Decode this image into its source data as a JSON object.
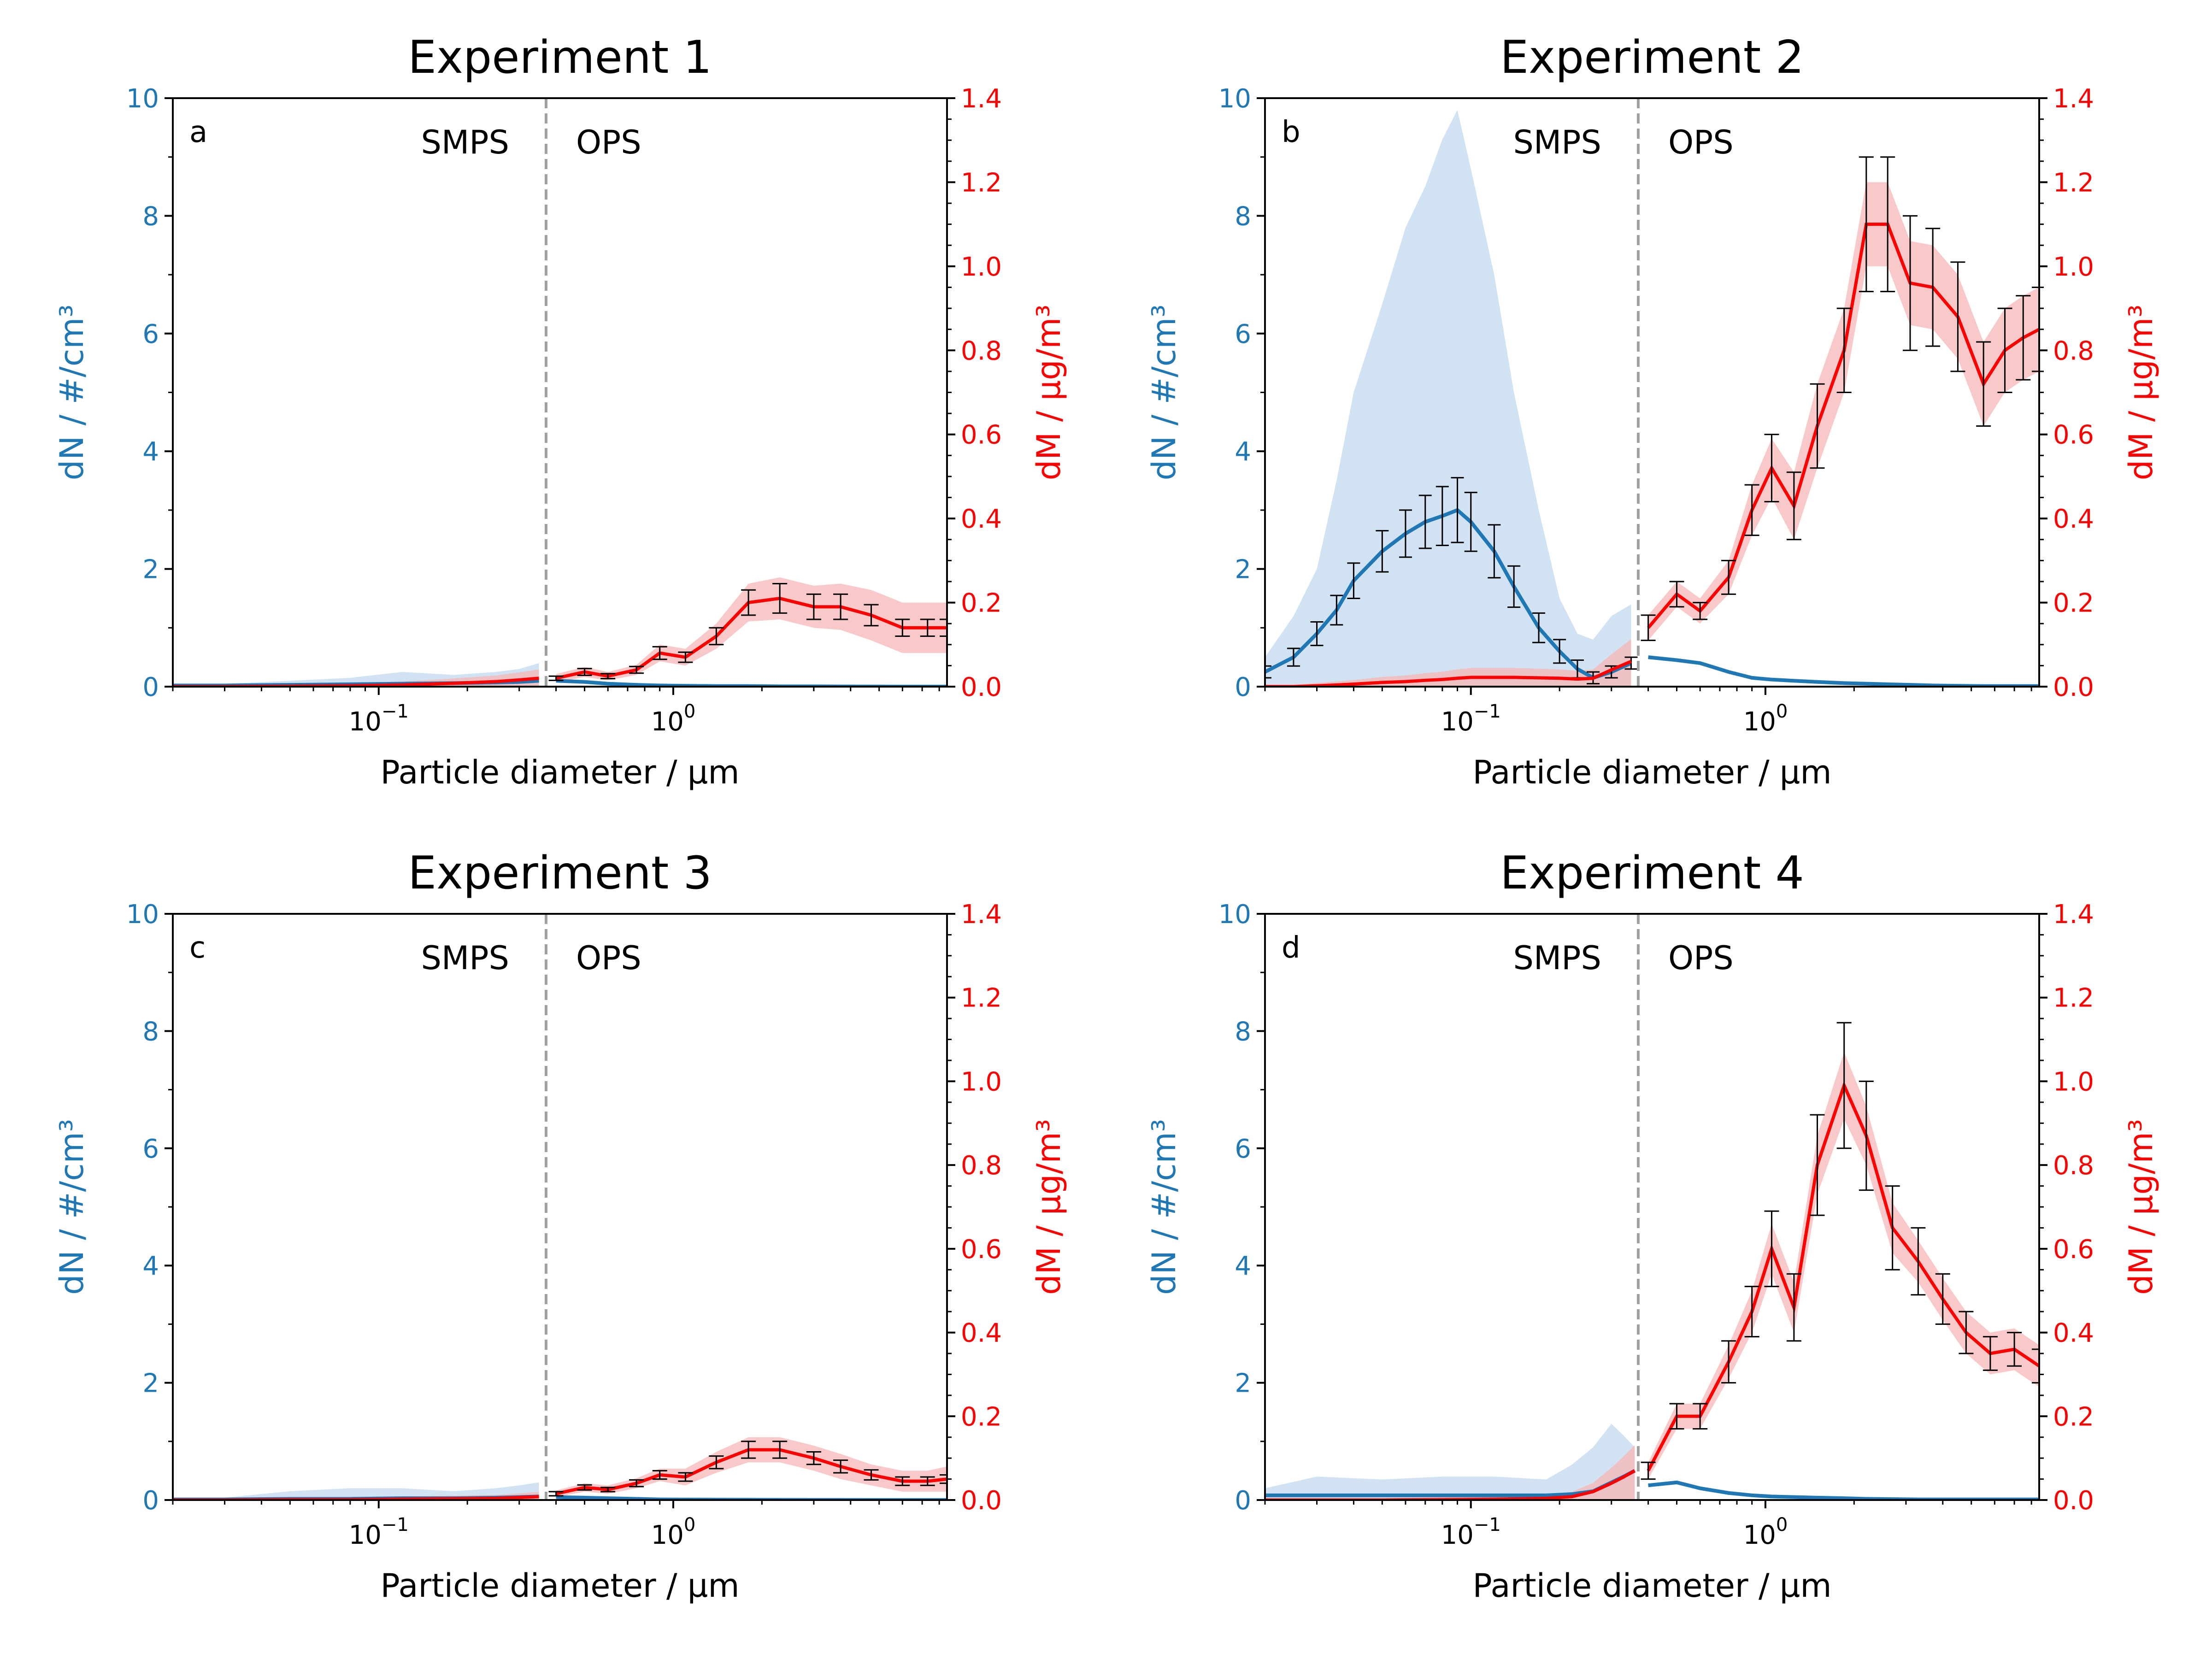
{
  "chart_data": [
    {
      "type": "line",
      "panel_letter": "a",
      "title": "Experiment 1",
      "xlabel": "Particle diameter / μm",
      "ylabel_left": "dN / #/cm³",
      "ylabel_right": "dM / μg/m³",
      "xscale": "log",
      "xlim": [
        0.02,
        8.5
      ],
      "ylim_left": [
        0,
        10
      ],
      "ylim_right": [
        0,
        1.4
      ],
      "yticks_left": [
        "0",
        "2",
        "4",
        "6",
        "8",
        "10"
      ],
      "yticks_right": [
        "0.0",
        "0.2",
        "0.4",
        "0.6",
        "0.8",
        "1.0",
        "1.2",
        "1.4"
      ],
      "annotations": {
        "left": "SMPS",
        "right": "OPS",
        "divider_x": 0.37
      },
      "smps_x": [
        0.02,
        0.03,
        0.05,
        0.08,
        0.12,
        0.18,
        0.25,
        0.3,
        0.35
      ],
      "smps_dN": [
        0.02,
        0.02,
        0.03,
        0.04,
        0.05,
        0.06,
        0.07,
        0.08,
        0.1
      ],
      "smps_dN_band_upper": [
        0.05,
        0.05,
        0.1,
        0.15,
        0.25,
        0.2,
        0.25,
        0.3,
        0.4
      ],
      "smps_dM": [
        0.0,
        0.0,
        0.001,
        0.002,
        0.004,
        0.008,
        0.012,
        0.016,
        0.02
      ],
      "ops_x": [
        0.4,
        0.5,
        0.6,
        0.75,
        0.9,
        1.1,
        1.4,
        1.8,
        2.3,
        3.0,
        3.7,
        4.7,
        6.0,
        7.3,
        8.5
      ],
      "ops_dM": [
        0.02,
        0.035,
        0.025,
        0.04,
        0.08,
        0.07,
        0.12,
        0.2,
        0.21,
        0.19,
        0.19,
        0.17,
        0.14,
        0.14,
        0.14
      ],
      "ops_dM_err": [
        0.005,
        0.008,
        0.006,
        0.008,
        0.015,
        0.012,
        0.02,
        0.03,
        0.035,
        0.03,
        0.03,
        0.025,
        0.02,
        0.02,
        0.02
      ],
      "ops_dM_band": [
        0.01,
        0.012,
        0.01,
        0.012,
        0.02,
        0.02,
        0.03,
        0.045,
        0.05,
        0.05,
        0.055,
        0.06,
        0.06,
        0.06,
        0.06
      ],
      "ops_dN": [
        0.1,
        0.08,
        0.05,
        0.03,
        0.02,
        0.015,
        0.01,
        0.01,
        0.005,
        0.005,
        0.003,
        0.002,
        0.001,
        0.001,
        0.001
      ]
    },
    {
      "type": "line",
      "panel_letter": "b",
      "title": "Experiment 2",
      "xlabel": "Particle diameter / μm",
      "ylabel_left": "dN / #/cm³",
      "ylabel_right": "dM / μg/m³",
      "xscale": "log",
      "xlim": [
        0.02,
        8.5
      ],
      "ylim_left": [
        0,
        10
      ],
      "ylim_right": [
        0,
        1.4
      ],
      "yticks_left": [
        "0",
        "2",
        "4",
        "6",
        "8",
        "10"
      ],
      "yticks_right": [
        "0.0",
        "0.2",
        "0.4",
        "0.6",
        "0.8",
        "1.0",
        "1.2",
        "1.4"
      ],
      "annotations": {
        "left": "SMPS",
        "right": "OPS",
        "divider_x": 0.37
      },
      "smps_x": [
        0.02,
        0.025,
        0.03,
        0.035,
        0.04,
        0.05,
        0.06,
        0.07,
        0.08,
        0.09,
        0.1,
        0.12,
        0.14,
        0.17,
        0.2,
        0.23,
        0.26,
        0.3,
        0.35
      ],
      "smps_dN": [
        0.25,
        0.5,
        0.9,
        1.3,
        1.8,
        2.3,
        2.6,
        2.8,
        2.9,
        3.0,
        2.8,
        2.3,
        1.7,
        1.0,
        0.6,
        0.3,
        0.15,
        0.25,
        0.4
      ],
      "smps_dN_err": [
        0.1,
        0.15,
        0.2,
        0.25,
        0.3,
        0.35,
        0.4,
        0.45,
        0.5,
        0.55,
        0.5,
        0.45,
        0.35,
        0.25,
        0.2,
        0.15,
        0.1,
        0.1,
        0.1
      ],
      "smps_dN_band_upper": [
        0.5,
        1.2,
        2.0,
        3.5,
        5.0,
        6.5,
        7.8,
        8.5,
        9.3,
        9.8,
        8.8,
        7.0,
        5.0,
        3.0,
        1.5,
        0.9,
        0.8,
        1.2,
        1.4
      ],
      "smps_dM": [
        0.0,
        0.0,
        0.002,
        0.004,
        0.006,
        0.01,
        0.012,
        0.015,
        0.017,
        0.02,
        0.022,
        0.022,
        0.022,
        0.021,
        0.02,
        0.018,
        0.02,
        0.04,
        0.06
      ],
      "ops_x": [
        0.4,
        0.5,
        0.6,
        0.75,
        0.9,
        1.05,
        1.25,
        1.5,
        1.85,
        2.2,
        2.6,
        3.1,
        3.7,
        4.5,
        5.5,
        6.5,
        7.5,
        8.5
      ],
      "ops_dM": [
        0.14,
        0.22,
        0.18,
        0.26,
        0.42,
        0.52,
        0.43,
        0.62,
        0.8,
        1.1,
        1.1,
        0.96,
        0.95,
        0.88,
        0.72,
        0.8,
        0.83,
        0.85
      ],
      "ops_dM_err": [
        0.03,
        0.03,
        0.02,
        0.04,
        0.06,
        0.08,
        0.08,
        0.1,
        0.1,
        0.16,
        0.16,
        0.16,
        0.14,
        0.13,
        0.1,
        0.1,
        0.1,
        0.1
      ],
      "ops_dM_band": [
        0.03,
        0.03,
        0.03,
        0.04,
        0.06,
        0.07,
        0.08,
        0.1,
        0.1,
        0.1,
        0.1,
        0.1,
        0.1,
        0.1,
        0.1,
        0.1,
        0.1,
        0.1
      ],
      "ops_dN": [
        0.5,
        0.45,
        0.4,
        0.25,
        0.15,
        0.12,
        0.1,
        0.08,
        0.06,
        0.05,
        0.04,
        0.03,
        0.02,
        0.015,
        0.01,
        0.01,
        0.01,
        0.01
      ]
    },
    {
      "type": "line",
      "panel_letter": "c",
      "title": "Experiment 3",
      "xlabel": "Particle diameter / μm",
      "ylabel_left": "dN / #/cm³",
      "ylabel_right": "dM / μg/m³",
      "xscale": "log",
      "xlim": [
        0.02,
        8.5
      ],
      "ylim_left": [
        0,
        10
      ],
      "ylim_right": [
        0,
        1.4
      ],
      "yticks_left": [
        "0",
        "2",
        "4",
        "6",
        "8",
        "10"
      ],
      "yticks_right": [
        "0.0",
        "0.2",
        "0.4",
        "0.6",
        "0.8",
        "1.0",
        "1.2",
        "1.4"
      ],
      "annotations": {
        "left": "SMPS",
        "right": "OPS",
        "divider_x": 0.37
      },
      "smps_x": [
        0.02,
        0.03,
        0.05,
        0.08,
        0.12,
        0.18,
        0.25,
        0.3,
        0.35
      ],
      "smps_dN": [
        0.01,
        0.01,
        0.02,
        0.02,
        0.03,
        0.03,
        0.04,
        0.05,
        0.06
      ],
      "smps_dN_band_upper": [
        0.03,
        0.04,
        0.15,
        0.2,
        0.2,
        0.15,
        0.2,
        0.25,
        0.3
      ],
      "smps_dM": [
        0.0,
        0.0,
        0.001,
        0.001,
        0.002,
        0.003,
        0.004,
        0.006,
        0.008
      ],
      "ops_x": [
        0.4,
        0.5,
        0.6,
        0.75,
        0.9,
        1.1,
        1.4,
        1.8,
        2.3,
        3.0,
        3.7,
        4.7,
        6.0,
        7.3,
        8.5
      ],
      "ops_dM": [
        0.015,
        0.03,
        0.025,
        0.04,
        0.06,
        0.055,
        0.09,
        0.12,
        0.12,
        0.1,
        0.08,
        0.06,
        0.045,
        0.045,
        0.05
      ],
      "ops_dM_err": [
        0.005,
        0.006,
        0.005,
        0.008,
        0.01,
        0.01,
        0.015,
        0.02,
        0.02,
        0.015,
        0.015,
        0.012,
        0.01,
        0.01,
        0.01
      ],
      "ops_dM_band": [
        0.008,
        0.01,
        0.01,
        0.012,
        0.015,
        0.02,
        0.025,
        0.03,
        0.03,
        0.03,
        0.03,
        0.025,
        0.025,
        0.025,
        0.03
      ],
      "ops_dN": [
        0.05,
        0.04,
        0.03,
        0.02,
        0.01,
        0.008,
        0.006,
        0.005,
        0.003,
        0.002,
        0.002,
        0.001,
        0.001,
        0.001,
        0.001
      ]
    },
    {
      "type": "line",
      "panel_letter": "d",
      "title": "Experiment 4",
      "xlabel": "Particle diameter / μm",
      "ylabel_left": "dN / #/cm³",
      "ylabel_right": "dM / μg/m³",
      "xscale": "log",
      "xlim": [
        0.02,
        8.5
      ],
      "ylim_left": [
        0,
        10
      ],
      "ylim_right": [
        0,
        1.4
      ],
      "yticks_left": [
        "0",
        "2",
        "4",
        "6",
        "8",
        "10"
      ],
      "yticks_right": [
        "0.0",
        "0.2",
        "0.4",
        "0.6",
        "0.8",
        "1.0",
        "1.2",
        "1.4"
      ],
      "annotations": {
        "left": "SMPS",
        "right": "OPS",
        "divider_x": 0.37
      },
      "smps_x": [
        0.02,
        0.03,
        0.05,
        0.08,
        0.12,
        0.18,
        0.22,
        0.26,
        0.3,
        0.33,
        0.36
      ],
      "smps_dN": [
        0.08,
        0.08,
        0.08,
        0.08,
        0.08,
        0.08,
        0.1,
        0.15,
        0.3,
        0.4,
        0.5
      ],
      "smps_dN_band_upper": [
        0.2,
        0.4,
        0.35,
        0.4,
        0.4,
        0.35,
        0.6,
        0.9,
        1.3,
        1.1,
        0.9
      ],
      "smps_dM": [
        0.0,
        0.0,
        0.0,
        0.001,
        0.002,
        0.004,
        0.008,
        0.02,
        0.04,
        0.055,
        0.07
      ],
      "ops_x": [
        0.4,
        0.5,
        0.6,
        0.75,
        0.9,
        1.05,
        1.25,
        1.5,
        1.85,
        2.2,
        2.7,
        3.3,
        4.0,
        4.8,
        5.8,
        7.0,
        8.5
      ],
      "ops_dM": [
        0.07,
        0.2,
        0.2,
        0.33,
        0.45,
        0.6,
        0.46,
        0.8,
        0.99,
        0.87,
        0.65,
        0.57,
        0.48,
        0.4,
        0.35,
        0.36,
        0.32
      ],
      "ops_dM_err": [
        0.02,
        0.03,
        0.03,
        0.05,
        0.06,
        0.09,
        0.08,
        0.12,
        0.15,
        0.13,
        0.1,
        0.08,
        0.06,
        0.05,
        0.04,
        0.04,
        0.04
      ],
      "ops_dM_band": [
        0.02,
        0.03,
        0.03,
        0.04,
        0.05,
        0.06,
        0.06,
        0.07,
        0.08,
        0.07,
        0.06,
        0.05,
        0.05,
        0.05,
        0.05,
        0.05,
        0.05
      ],
      "ops_dN": [
        0.25,
        0.3,
        0.2,
        0.12,
        0.08,
        0.06,
        0.05,
        0.04,
        0.03,
        0.02,
        0.015,
        0.01,
        0.01,
        0.01,
        0.01,
        0.01,
        0.01
      ]
    }
  ],
  "colors": {
    "dN_line": "#1f77b4",
    "dN_band": "#c6dbef",
    "dM_line": "#ff0000",
    "dM_band": "#f7b6b6",
    "error_bar": "#000000",
    "divider": "#a0a0a0"
  }
}
